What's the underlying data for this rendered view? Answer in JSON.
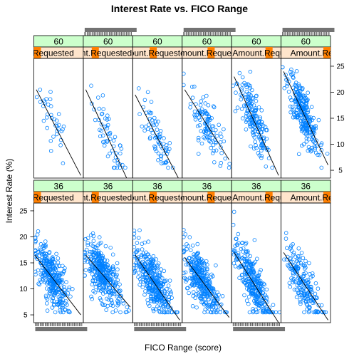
{
  "chart_data": {
    "type": "scatter",
    "title": "Interest Rate vs. FICO Range",
    "xlabel": "FICO Range (score)",
    "ylabel": "Interest Rate (%)",
    "yticks": [
      5,
      10,
      15,
      20,
      25
    ],
    "ylim": [
      3.5,
      26.5
    ],
    "xlim": [
      0,
      1
    ],
    "grid": false,
    "strip_term_label_top": "60",
    "strip_term_label_bottom": "36",
    "strip_amount_label": "Amount.Requested",
    "colors": {
      "point": "#0080ff",
      "strip_term": "#ccffcc",
      "strip_amount": "#ffe5cc",
      "strip_amount_bar": "#ff7f00"
    },
    "panels": [
      {
        "term": "60",
        "col": 1,
        "n": 35,
        "line": [
          [
            0.05,
            20.5
          ],
          [
            0.95,
            4.0
          ]
        ],
        "center": 0.4,
        "spread": 0.3
      },
      {
        "term": "60",
        "col": 2,
        "n": 55,
        "line": [
          [
            0.05,
            20.5
          ],
          [
            0.95,
            2.0
          ]
        ],
        "center": 0.5,
        "spread": 0.3
      },
      {
        "term": "60",
        "col": 3,
        "n": 70,
        "line": [
          [
            0.05,
            19.5
          ],
          [
            0.95,
            3.0
          ]
        ],
        "center": 0.5,
        "spread": 0.3
      },
      {
        "term": "60",
        "col": 4,
        "n": 110,
        "line": [
          [
            0.05,
            20.5
          ],
          [
            0.95,
            7.0
          ]
        ],
        "center": 0.5,
        "spread": 0.3
      },
      {
        "term": "60",
        "col": 5,
        "n": 180,
        "line": [
          [
            0.05,
            23.0
          ],
          [
            0.95,
            4.0
          ]
        ],
        "center": 0.45,
        "spread": 0.3
      },
      {
        "term": "60",
        "col": 6,
        "n": 260,
        "line": [
          [
            0.05,
            24.0
          ],
          [
            0.95,
            6.0
          ]
        ],
        "center": 0.45,
        "spread": 0.28
      },
      {
        "term": "36",
        "col": 1,
        "n": 320,
        "line": [
          [
            0.02,
            16.5
          ],
          [
            0.95,
            5.0
          ]
        ],
        "center": 0.35,
        "spread": 0.3
      },
      {
        "term": "36",
        "col": 2,
        "n": 340,
        "line": [
          [
            0.05,
            16.5
          ],
          [
            0.95,
            6.5
          ]
        ],
        "center": 0.4,
        "spread": 0.32
      },
      {
        "term": "36",
        "col": 3,
        "n": 360,
        "line": [
          [
            0.05,
            16.5
          ],
          [
            0.95,
            4.0
          ]
        ],
        "center": 0.4,
        "spread": 0.32
      },
      {
        "term": "36",
        "col": 4,
        "n": 330,
        "line": [
          [
            0.05,
            16.0
          ],
          [
            0.95,
            4.5
          ]
        ],
        "center": 0.4,
        "spread": 0.32
      },
      {
        "term": "36",
        "col": 5,
        "n": 290,
        "line": [
          [
            0.05,
            17.0
          ],
          [
            0.95,
            3.5
          ]
        ],
        "center": 0.4,
        "spread": 0.32
      },
      {
        "term": "36",
        "col": 6,
        "n": 200,
        "line": [
          [
            0.05,
            17.0
          ],
          [
            0.95,
            4.0
          ]
        ],
        "center": 0.45,
        "spread": 0.32
      }
    ]
  }
}
